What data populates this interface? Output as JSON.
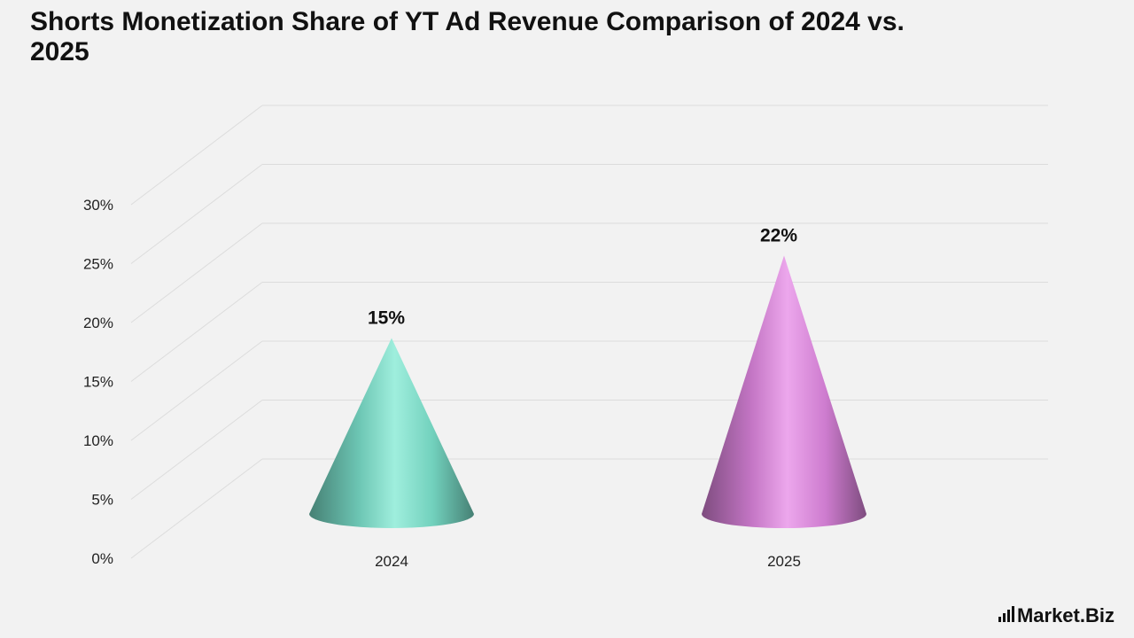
{
  "chart_data": {
    "type": "bar",
    "bar_shape": "cone",
    "title": "Shorts Monetization Share of YT Ad Revenue Comparison of 2024 vs. 2025",
    "categories": [
      "2024",
      "2025"
    ],
    "values": [
      15,
      22
    ],
    "data_labels": [
      "15%",
      "22%"
    ],
    "colors": [
      "#7fe8d2",
      "#e58ae6"
    ],
    "ylim": [
      0,
      30
    ],
    "y_ticks": [
      0,
      5,
      10,
      15,
      20,
      25,
      30
    ],
    "y_tick_labels": [
      "0%",
      "5%",
      "10%",
      "15%",
      "20%",
      "25%",
      "30%"
    ],
    "grid": true,
    "xlabel": "",
    "ylabel": ""
  },
  "brand": {
    "logo_text": "Market.Biz"
  }
}
